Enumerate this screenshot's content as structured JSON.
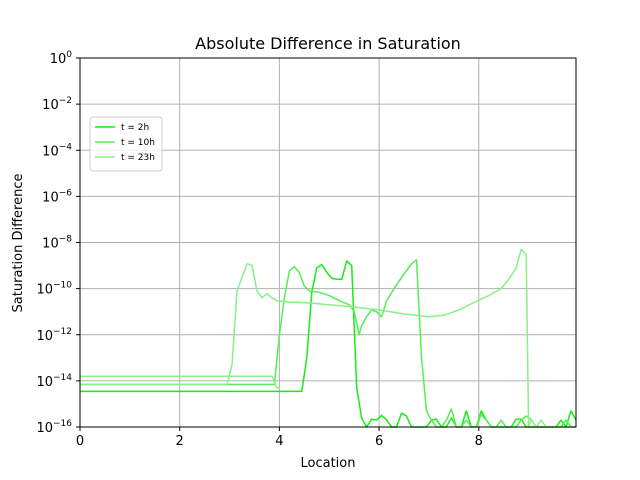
{
  "chart_data": {
    "type": "line",
    "title": "Absolute Difference in Saturation",
    "xlabel": "Location",
    "ylabel": "Saturation Difference",
    "xlim": [
      0,
      9.95
    ],
    "ylim_exponent": [
      -16,
      0
    ],
    "yscale": "log",
    "grid": true,
    "legend_position": "upper-left",
    "x_ticks": [
      {
        "value": 0,
        "label": "0"
      },
      {
        "value": 2,
        "label": "2"
      },
      {
        "value": 4,
        "label": "4"
      },
      {
        "value": 6,
        "label": "6"
      },
      {
        "value": 8,
        "label": "8"
      }
    ],
    "y_ticks": [
      {
        "exp": 0,
        "base": "10",
        "power": "0"
      },
      {
        "exp": -2,
        "base": "10",
        "power": "−2"
      },
      {
        "exp": -4,
        "base": "10",
        "power": "−4"
      },
      {
        "exp": -6,
        "base": "10",
        "power": "−6"
      },
      {
        "exp": -8,
        "base": "10",
        "power": "−8"
      },
      {
        "exp": -10,
        "base": "10",
        "power": "−10"
      },
      {
        "exp": -12,
        "base": "10",
        "power": "−12"
      },
      {
        "exp": -14,
        "base": "10",
        "power": "−14"
      },
      {
        "exp": -16,
        "base": "10",
        "power": "−16"
      }
    ],
    "series": [
      {
        "name": "t = 2h",
        "color": "#14ee14",
        "points": [
          [
            0,
            3.5e-15
          ],
          [
            1,
            3.5e-15
          ],
          [
            2,
            3.5e-15
          ],
          [
            3,
            3.5e-15
          ],
          [
            4,
            3.5e-15
          ],
          [
            4.45,
            3.5e-15
          ],
          [
            4.55,
            1e-13
          ],
          [
            4.65,
            7e-11
          ],
          [
            4.75,
            8e-10
          ],
          [
            4.85,
            1.1e-09
          ],
          [
            4.95,
            5e-10
          ],
          [
            5.05,
            2.8e-10
          ],
          [
            5.15,
            2.6e-10
          ],
          [
            5.25,
            2.5e-10
          ],
          [
            5.35,
            1.6e-09
          ],
          [
            5.45,
            1e-09
          ],
          [
            5.55,
            5e-15
          ],
          [
            5.65,
            2.5e-16
          ],
          [
            5.75,
            1e-16
          ],
          [
            5.85,
            2.2e-16
          ],
          [
            5.95,
            2e-16
          ],
          [
            6.05,
            3.2e-16
          ],
          [
            6.15,
            2e-16
          ],
          [
            6.25,
            1e-16
          ],
          [
            6.35,
            1e-16
          ],
          [
            6.45,
            4e-16
          ],
          [
            6.55,
            3e-16
          ],
          [
            6.65,
            1e-16
          ],
          [
            6.75,
            1e-16
          ],
          [
            6.85,
            1e-16
          ],
          [
            6.95,
            1e-16
          ],
          [
            7.05,
            2e-16
          ],
          [
            7.15,
            2.2e-16
          ],
          [
            7.25,
            1e-16
          ],
          [
            7.35,
            1e-16
          ],
          [
            7.45,
            2.5e-16
          ],
          [
            7.55,
            1e-16
          ],
          [
            7.65,
            1e-16
          ],
          [
            7.75,
            5e-16
          ],
          [
            7.85,
            1e-16
          ],
          [
            7.95,
            1e-16
          ],
          [
            8.05,
            5e-16
          ],
          [
            8.15,
            2e-16
          ],
          [
            8.25,
            1e-16
          ],
          [
            8.35,
            1e-16
          ],
          [
            8.45,
            1e-16
          ],
          [
            8.55,
            1e-16
          ],
          [
            8.65,
            1e-16
          ],
          [
            8.75,
            2.2e-16
          ],
          [
            8.85,
            2.2e-16
          ],
          [
            8.95,
            1e-16
          ],
          [
            9.05,
            1e-16
          ],
          [
            9.15,
            1e-16
          ],
          [
            9.25,
            1e-16
          ],
          [
            9.35,
            1e-16
          ],
          [
            9.45,
            1e-16
          ],
          [
            9.55,
            1e-16
          ],
          [
            9.65,
            2e-16
          ],
          [
            9.75,
            1e-16
          ],
          [
            9.85,
            5e-16
          ],
          [
            9.95,
            2e-16
          ]
        ]
      },
      {
        "name": "t = 10h",
        "color": "#55ee55",
        "points": [
          [
            0,
            7e-15
          ],
          [
            1,
            7e-15
          ],
          [
            2,
            7e-15
          ],
          [
            3,
            7e-15
          ],
          [
            3.9,
            7e-15
          ],
          [
            4.0,
            1e-12
          ],
          [
            4.1,
            4e-11
          ],
          [
            4.2,
            6e-10
          ],
          [
            4.3,
            9e-10
          ],
          [
            4.4,
            5e-10
          ],
          [
            4.5,
            1.3e-10
          ],
          [
            4.6,
            8e-11
          ],
          [
            4.8,
            7e-11
          ],
          [
            5.0,
            5e-11
          ],
          [
            5.2,
            3e-11
          ],
          [
            5.4,
            2e-11
          ],
          [
            5.5,
            1e-11
          ],
          [
            5.6,
            1e-12
          ],
          [
            5.65,
            2.5e-12
          ],
          [
            5.75,
            6e-12
          ],
          [
            5.85,
            1.2e-11
          ],
          [
            5.95,
            1e-11
          ],
          [
            6.05,
            6e-12
          ],
          [
            6.15,
            3e-11
          ],
          [
            6.3,
            1e-10
          ],
          [
            6.45,
            3e-10
          ],
          [
            6.55,
            6e-10
          ],
          [
            6.65,
            1.2e-09
          ],
          [
            6.75,
            1.8e-09
          ],
          [
            6.85,
            1e-13
          ],
          [
            6.95,
            5e-16
          ],
          [
            7.05,
            2e-16
          ],
          [
            7.15,
            1e-16
          ],
          [
            7.25,
            1e-16
          ],
          [
            7.35,
            2e-16
          ],
          [
            7.45,
            6e-16
          ],
          [
            7.55,
            1e-16
          ],
          [
            7.65,
            1e-16
          ],
          [
            7.75,
            2e-16
          ],
          [
            7.85,
            1e-16
          ],
          [
            7.95,
            1e-16
          ],
          [
            8.05,
            3.5e-16
          ],
          [
            8.15,
            2e-16
          ],
          [
            8.25,
            1e-16
          ],
          [
            8.35,
            1e-16
          ],
          [
            8.45,
            2e-16
          ],
          [
            8.55,
            1e-16
          ],
          [
            8.65,
            1e-16
          ],
          [
            8.75,
            1e-16
          ],
          [
            8.85,
            2e-16
          ],
          [
            8.95,
            3e-16
          ],
          [
            9.05,
            2.2e-16
          ],
          [
            9.15,
            1e-16
          ],
          [
            9.25,
            1e-16
          ],
          [
            9.35,
            1e-16
          ],
          [
            9.45,
            1e-16
          ],
          [
            9.55,
            1e-16
          ],
          [
            9.65,
            1e-16
          ],
          [
            9.75,
            2e-16
          ],
          [
            9.85,
            1e-16
          ],
          [
            9.95,
            1e-16
          ]
        ]
      },
      {
        "name": "t = 23h",
        "color": "#88f088",
        "points": [
          [
            0,
            1.6e-14
          ],
          [
            1,
            1.6e-14
          ],
          [
            2,
            1.6e-14
          ],
          [
            3,
            1.6e-14
          ],
          [
            3.85,
            1.6e-14
          ],
          [
            3.95,
            5e-15
          ],
          [
            4.0,
            5e-15
          ],
          [
            3.95,
            5e-15
          ]
        ]
      },
      {
        "name": "",
        "color": "#88f088",
        "legend": false,
        "points": [
          [
            0,
            7e-15
          ],
          [
            2.95,
            7e-15
          ],
          [
            3.05,
            5e-14
          ],
          [
            3.15,
            8e-11
          ],
          [
            3.25,
            3e-10
          ],
          [
            3.35,
            1.2e-09
          ],
          [
            3.45,
            1e-09
          ],
          [
            3.55,
            8e-11
          ],
          [
            3.65,
            4e-11
          ],
          [
            3.75,
            6e-11
          ],
          [
            3.85,
            4e-11
          ],
          [
            3.95,
            3e-11
          ],
          [
            4.2,
            2.6e-11
          ],
          [
            4.6,
            2.4e-11
          ],
          [
            5.0,
            2e-11
          ],
          [
            5.5,
            1.6e-11
          ],
          [
            6.0,
            1.2e-11
          ],
          [
            6.5,
            8e-12
          ],
          [
            7.0,
            6e-12
          ],
          [
            7.3,
            7e-12
          ],
          [
            7.6,
            1.2e-11
          ],
          [
            7.9,
            2.5e-11
          ],
          [
            8.2,
            5e-11
          ],
          [
            8.45,
            1e-10
          ],
          [
            8.6,
            2.5e-10
          ],
          [
            8.75,
            8e-10
          ],
          [
            8.85,
            5e-09
          ],
          [
            8.95,
            3e-09
          ],
          [
            9.0,
            1e-16
          ],
          [
            9.05,
            2.2e-16
          ],
          [
            9.15,
            1e-16
          ],
          [
            9.25,
            2e-16
          ],
          [
            9.35,
            1e-16
          ],
          [
            9.45,
            1e-16
          ],
          [
            9.55,
            1e-16
          ],
          [
            9.65,
            1e-16
          ],
          [
            9.75,
            1e-16
          ],
          [
            9.85,
            1e-16
          ],
          [
            9.95,
            1e-16
          ]
        ]
      }
    ]
  }
}
